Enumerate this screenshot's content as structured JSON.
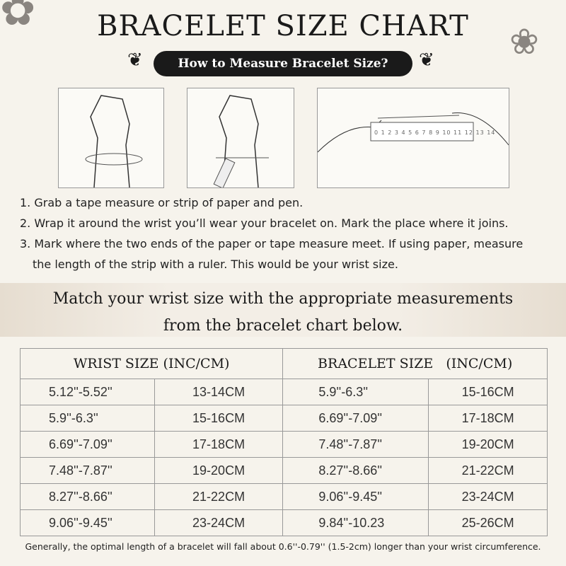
{
  "title": "BRACELET SIZE CHART",
  "subtitle": "How to Measure Bracelet Size?",
  "steps": [
    "1. Grab a tape measure or strip of paper and pen.",
    "2. Wrap it around the wrist you’ll wear your bracelet on. Mark the place where it joins.",
    "3. Mark where the two ends of the paper or tape measure meet. If using paper, measure",
    "the length of the strip with a ruler. This would be your wrist size."
  ],
  "ruler_numbers": "0 1 2 3 4 5 6 7 8 9 10 11 12 13 14",
  "banner": [
    "Match your wrist size with the appropriate measurements",
    "from the bracelet chart below."
  ],
  "table": {
    "headers": [
      "WRIST SIZE (INC/CM)",
      "BRACELET SIZE   (INC/CM)"
    ],
    "rows": [
      [
        "5.12''-5.52''",
        "13-14CM",
        "5.9''-6.3''",
        "15-16CM"
      ],
      [
        "5.9''-6.3''",
        "15-16CM",
        "6.69''-7.09''",
        "17-18CM"
      ],
      [
        "6.69''-7.09''",
        "17-18CM",
        "7.48''-7.87''",
        "19-20CM"
      ],
      [
        "7.48''-7.87''",
        "19-20CM",
        "8.27''-8.66''",
        "21-22CM"
      ],
      [
        "8.27''-8.66''",
        "21-22CM",
        "9.06''-9.45''",
        "23-24CM"
      ],
      [
        "9.06''-9.45''",
        "23-24CM",
        "9.84''-10.23",
        "25-26CM"
      ]
    ]
  },
  "footnote": "Generally, the optimal length of a bracelet will fall about 0.6''-0.79'' (1.5-2cm) longer than your wrist circumference."
}
